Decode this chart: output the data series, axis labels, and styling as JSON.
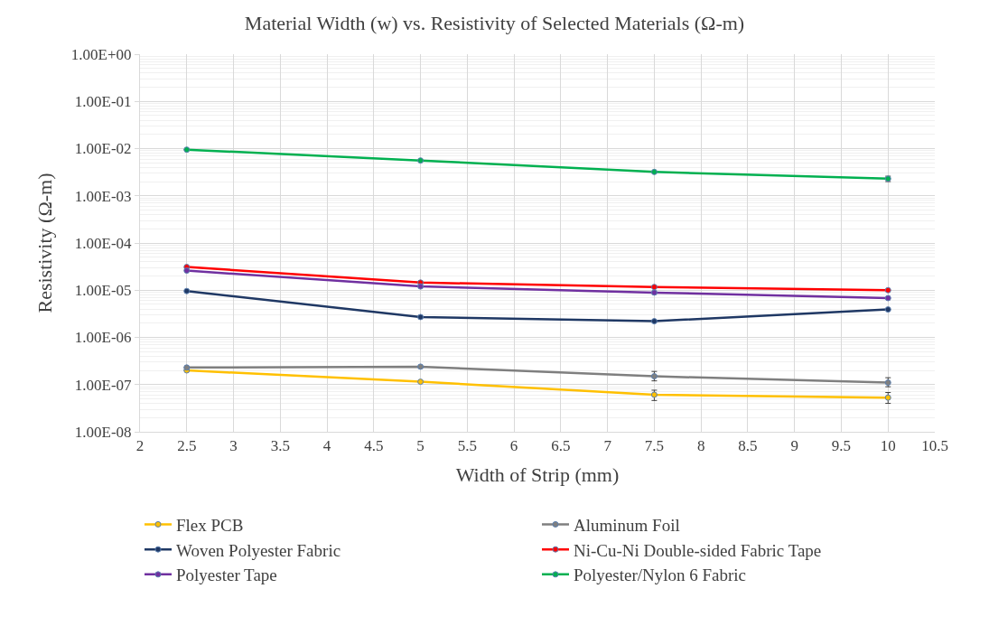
{
  "chart_data": {
    "type": "line",
    "title": "Material Width (w) vs. Resistivity of Selected Materials (Ω-m)",
    "xlabel": "Width of Strip (mm)",
    "ylabel": "Resistivity (Ω-m)",
    "x": [
      2.5,
      5,
      7.5,
      10
    ],
    "series": [
      {
        "name": "Flex PCB",
        "color": "#ffc000",
        "values": [
          2e-07,
          1.15e-07,
          6.1e-08,
          5.3e-08
        ],
        "errors": [
          null,
          null,
          [
            4.6e-08,
            7.6e-08
          ],
          [
            4e-08,
            6.8e-08
          ]
        ]
      },
      {
        "name": "Aluminum Foil",
        "color": "#7f7f7f",
        "values": [
          2.3e-07,
          2.4e-07,
          1.5e-07,
          1.1e-07
        ],
        "errors": [
          null,
          null,
          [
            1.2e-07,
            1.9e-07
          ],
          [
            9e-08,
            1.4e-07
          ]
        ]
      },
      {
        "name": "Woven Polyester Fabric",
        "color": "#1f3864",
        "values": [
          9.6e-06,
          2.7e-06,
          2.2e-06,
          3.9e-06
        ]
      },
      {
        "name": "Ni-Cu-Ni Double-sided Fabric Tape",
        "color": "#ff0000",
        "values": [
          3.1e-05,
          1.45e-05,
          1.17e-05,
          1e-05
        ]
      },
      {
        "name": "Polyester Tape",
        "color": "#7030a0",
        "values": [
          2.6e-05,
          1.2e-05,
          8.9e-06,
          6.8e-06
        ]
      },
      {
        "name": "Polyester/Nylon 6 Fabric",
        "color": "#00b050",
        "values": [
          0.0095,
          0.0056,
          0.0032,
          0.0023
        ],
        "errors": [
          null,
          null,
          null,
          [
            0.002,
            0.0026
          ]
        ]
      }
    ],
    "log": "y",
    "xlim": [
      2,
      10.5
    ],
    "xticks": [
      2,
      2.5,
      3,
      3.5,
      4,
      4.5,
      5,
      5.5,
      6,
      6.5,
      7,
      7.5,
      8,
      8.5,
      9,
      9.5,
      10,
      10.5
    ],
    "ylim": [
      1e-08,
      1
    ],
    "yticks": [
      {
        "value": 1e-08,
        "label": "1.00E-08"
      },
      {
        "value": 1e-07,
        "label": "1.00E-07"
      },
      {
        "value": 1e-06,
        "label": "1.00E-06"
      },
      {
        "value": 1e-05,
        "label": "1.00E-05"
      },
      {
        "value": 0.0001,
        "label": "1.00E-04"
      },
      {
        "value": 0.001,
        "label": "1.00E-03"
      },
      {
        "value": 0.01,
        "label": "1.00E-02"
      },
      {
        "value": 0.1,
        "label": "1.00E-01"
      },
      {
        "value": 1,
        "label": "1.00E+00"
      }
    ],
    "grid": true,
    "legend": "bottom",
    "marker": "circle",
    "line_style": "solid"
  }
}
